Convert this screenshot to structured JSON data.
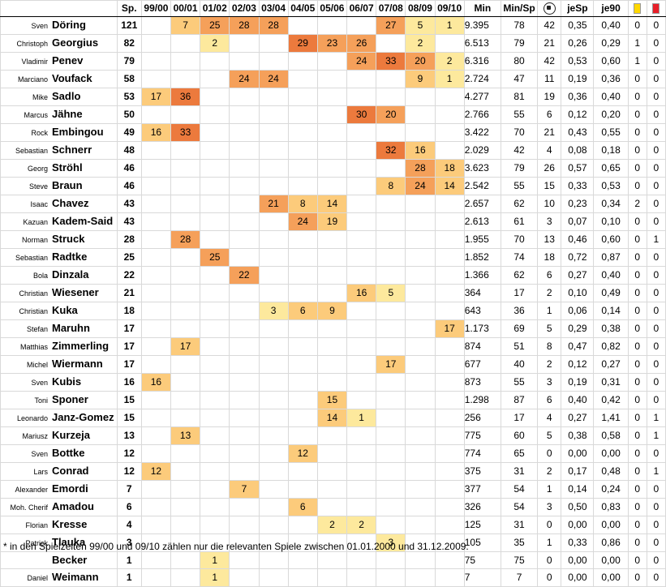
{
  "headers": {
    "sp": "Sp.",
    "seasons": [
      "99/00",
      "00/01",
      "01/02",
      "02/03",
      "03/04",
      "04/05",
      "05/06",
      "06/07",
      "07/08",
      "08/09",
      "09/10"
    ],
    "min": "Min",
    "min_per_sp": "Min/Sp",
    "goals_icon": "football-icon",
    "je_sp": "jeSp",
    "je90": "je90",
    "yellow_icon": "yellow-card-icon",
    "red_icon": "red-card-icon"
  },
  "players": [
    {
      "first": "Sven",
      "last": "Döring",
      "sp": "121",
      "seasons": [
        "",
        "7",
        "25",
        "28",
        "28",
        "",
        "",
        "",
        "27",
        "5",
        "1"
      ],
      "min": "9.395",
      "min_per_sp": "78",
      "goals": "42",
      "je_sp": "0,35",
      "je90": "0,40",
      "yellow": "0",
      "red": "0"
    },
    {
      "first": "Christoph",
      "last": "Georgius",
      "sp": "82",
      "seasons": [
        "",
        "",
        "2",
        "",
        "",
        "29",
        "23",
        "26",
        "",
        "2",
        ""
      ],
      "min": "6.513",
      "min_per_sp": "79",
      "goals": "21",
      "je_sp": "0,26",
      "je90": "0,29",
      "yellow": "1",
      "red": "0"
    },
    {
      "first": "Vladimir",
      "last": "Penev",
      "sp": "79",
      "seasons": [
        "",
        "",
        "",
        "",
        "",
        "",
        "",
        "24",
        "33",
        "20",
        "2"
      ],
      "min": "6.316",
      "min_per_sp": "80",
      "goals": "42",
      "je_sp": "0,53",
      "je90": "0,60",
      "yellow": "1",
      "red": "0"
    },
    {
      "first": "Marciano",
      "last": "Voufack",
      "sp": "58",
      "seasons": [
        "",
        "",
        "",
        "24",
        "24",
        "",
        "",
        "",
        "",
        "9",
        "1"
      ],
      "min": "2.724",
      "min_per_sp": "47",
      "goals": "11",
      "je_sp": "0,19",
      "je90": "0,36",
      "yellow": "0",
      "red": "0"
    },
    {
      "first": "Mike",
      "last": "Sadlo",
      "sp": "53",
      "seasons": [
        "17",
        "36",
        "",
        "",
        "",
        "",
        "",
        "",
        "",
        "",
        ""
      ],
      "min": "4.277",
      "min_per_sp": "81",
      "goals": "19",
      "je_sp": "0,36",
      "je90": "0,40",
      "yellow": "0",
      "red": "0"
    },
    {
      "first": "Marcus",
      "last": "Jähne",
      "sp": "50",
      "seasons": [
        "",
        "",
        "",
        "",
        "",
        "",
        "",
        "30",
        "20",
        "",
        ""
      ],
      "min": "2.766",
      "min_per_sp": "55",
      "goals": "6",
      "je_sp": "0,12",
      "je90": "0,20",
      "yellow": "0",
      "red": "0"
    },
    {
      "first": "Rock",
      "last": "Embingou",
      "sp": "49",
      "seasons": [
        "16",
        "33",
        "",
        "",
        "",
        "",
        "",
        "",
        "",
        "",
        ""
      ],
      "min": "3.422",
      "min_per_sp": "70",
      "goals": "21",
      "je_sp": "0,43",
      "je90": "0,55",
      "yellow": "0",
      "red": "0"
    },
    {
      "first": "Sebastian",
      "last": "Schnerr",
      "sp": "48",
      "seasons": [
        "",
        "",
        "",
        "",
        "",
        "",
        "",
        "",
        "32",
        "16",
        ""
      ],
      "min": "2.029",
      "min_per_sp": "42",
      "goals": "4",
      "je_sp": "0,08",
      "je90": "0,18",
      "yellow": "0",
      "red": "0"
    },
    {
      "first": "Georg",
      "last": "Ströhl",
      "sp": "46",
      "seasons": [
        "",
        "",
        "",
        "",
        "",
        "",
        "",
        "",
        "",
        "28",
        "18"
      ],
      "min": "3.623",
      "min_per_sp": "79",
      "goals": "26",
      "je_sp": "0,57",
      "je90": "0,65",
      "yellow": "0",
      "red": "0"
    },
    {
      "first": "Steve",
      "last": "Braun",
      "sp": "46",
      "seasons": [
        "",
        "",
        "",
        "",
        "",
        "",
        "",
        "",
        "8",
        "24",
        "14"
      ],
      "min": "2.542",
      "min_per_sp": "55",
      "goals": "15",
      "je_sp": "0,33",
      "je90": "0,53",
      "yellow": "0",
      "red": "0"
    },
    {
      "first": "Isaac",
      "last": "Chavez",
      "sp": "43",
      "seasons": [
        "",
        "",
        "",
        "",
        "21",
        "8",
        "14",
        "",
        "",
        "",
        ""
      ],
      "min": "2.657",
      "min_per_sp": "62",
      "goals": "10",
      "je_sp": "0,23",
      "je90": "0,34",
      "yellow": "2",
      "red": "0"
    },
    {
      "first": "Kazuan",
      "last": "Kadem-Said",
      "sp": "43",
      "seasons": [
        "",
        "",
        "",
        "",
        "",
        "24",
        "19",
        "",
        "",
        "",
        ""
      ],
      "min": "2.613",
      "min_per_sp": "61",
      "goals": "3",
      "je_sp": "0,07",
      "je90": "0,10",
      "yellow": "0",
      "red": "0"
    },
    {
      "first": "Norman",
      "last": "Struck",
      "sp": "28",
      "seasons": [
        "",
        "28",
        "",
        "",
        "",
        "",
        "",
        "",
        "",
        "",
        ""
      ],
      "min": "1.955",
      "min_per_sp": "70",
      "goals": "13",
      "je_sp": "0,46",
      "je90": "0,60",
      "yellow": "0",
      "red": "1"
    },
    {
      "first": "Sebastian",
      "last": "Radtke",
      "sp": "25",
      "seasons": [
        "",
        "",
        "25",
        "",
        "",
        "",
        "",
        "",
        "",
        "",
        ""
      ],
      "min": "1.852",
      "min_per_sp": "74",
      "goals": "18",
      "je_sp": "0,72",
      "je90": "0,87",
      "yellow": "0",
      "red": "0"
    },
    {
      "first": "Bola",
      "last": "Dinzala",
      "sp": "22",
      "seasons": [
        "",
        "",
        "",
        "22",
        "",
        "",
        "",
        "",
        "",
        "",
        ""
      ],
      "min": "1.366",
      "min_per_sp": "62",
      "goals": "6",
      "je_sp": "0,27",
      "je90": "0,40",
      "yellow": "0",
      "red": "0"
    },
    {
      "first": "Christian",
      "last": "Wiesener",
      "sp": "21",
      "seasons": [
        "",
        "",
        "",
        "",
        "",
        "",
        "",
        "16",
        "5",
        "",
        ""
      ],
      "min": "364",
      "min_per_sp": "17",
      "goals": "2",
      "je_sp": "0,10",
      "je90": "0,49",
      "yellow": "0",
      "red": "0"
    },
    {
      "first": "Christian",
      "last": "Kuka",
      "sp": "18",
      "seasons": [
        "",
        "",
        "",
        "",
        "3",
        "6",
        "9",
        "",
        "",
        "",
        ""
      ],
      "min": "643",
      "min_per_sp": "36",
      "goals": "1",
      "je_sp": "0,06",
      "je90": "0,14",
      "yellow": "0",
      "red": "0"
    },
    {
      "first": "Stefan",
      "last": "Maruhn",
      "sp": "17",
      "seasons": [
        "",
        "",
        "",
        "",
        "",
        "",
        "",
        "",
        "",
        "",
        "17"
      ],
      "min": "1.173",
      "min_per_sp": "69",
      "goals": "5",
      "je_sp": "0,29",
      "je90": "0,38",
      "yellow": "0",
      "red": "0"
    },
    {
      "first": "Matthias",
      "last": "Zimmerling",
      "sp": "17",
      "seasons": [
        "",
        "17",
        "",
        "",
        "",
        "",
        "",
        "",
        "",
        "",
        ""
      ],
      "min": "874",
      "min_per_sp": "51",
      "goals": "8",
      "je_sp": "0,47",
      "je90": "0,82",
      "yellow": "0",
      "red": "0"
    },
    {
      "first": "Michel",
      "last": "Wiermann",
      "sp": "17",
      "seasons": [
        "",
        "",
        "",
        "",
        "",
        "",
        "",
        "",
        "17",
        "",
        ""
      ],
      "min": "677",
      "min_per_sp": "40",
      "goals": "2",
      "je_sp": "0,12",
      "je90": "0,27",
      "yellow": "0",
      "red": "0"
    },
    {
      "first": "Sven",
      "last": "Kubis",
      "sp": "16",
      "seasons": [
        "16",
        "",
        "",
        "",
        "",
        "",
        "",
        "",
        "",
        "",
        ""
      ],
      "min": "873",
      "min_per_sp": "55",
      "goals": "3",
      "je_sp": "0,19",
      "je90": "0,31",
      "yellow": "0",
      "red": "0"
    },
    {
      "first": "Toni",
      "last": "Sponer",
      "sp": "15",
      "seasons": [
        "",
        "",
        "",
        "",
        "",
        "",
        "15",
        "",
        "",
        "",
        ""
      ],
      "min": "1.298",
      "min_per_sp": "87",
      "goals": "6",
      "je_sp": "0,40",
      "je90": "0,42",
      "yellow": "0",
      "red": "0"
    },
    {
      "first": "Leonardo",
      "last": "Janz-Gomez",
      "sp": "15",
      "seasons": [
        "",
        "",
        "",
        "",
        "",
        "",
        "14",
        "1",
        "",
        "",
        ""
      ],
      "min": "256",
      "min_per_sp": "17",
      "goals": "4",
      "je_sp": "0,27",
      "je90": "1,41",
      "yellow": "0",
      "red": "1"
    },
    {
      "first": "Mariusz",
      "last": "Kurzeja",
      "sp": "13",
      "seasons": [
        "",
        "13",
        "",
        "",
        "",
        "",
        "",
        "",
        "",
        "",
        ""
      ],
      "min": "775",
      "min_per_sp": "60",
      "goals": "5",
      "je_sp": "0,38",
      "je90": "0,58",
      "yellow": "0",
      "red": "1"
    },
    {
      "first": "Sven",
      "last": "Bottke",
      "sp": "12",
      "seasons": [
        "",
        "",
        "",
        "",
        "",
        "12",
        "",
        "",
        "",
        "",
        ""
      ],
      "min": "774",
      "min_per_sp": "65",
      "goals": "0",
      "je_sp": "0,00",
      "je90": "0,00",
      "yellow": "0",
      "red": "0"
    },
    {
      "first": "Lars",
      "last": "Conrad",
      "sp": "12",
      "seasons": [
        "12",
        "",
        "",
        "",
        "",
        "",
        "",
        "",
        "",
        "",
        ""
      ],
      "min": "375",
      "min_per_sp": "31",
      "goals": "2",
      "je_sp": "0,17",
      "je90": "0,48",
      "yellow": "0",
      "red": "1"
    },
    {
      "first": "Alexander",
      "last": "Emordi",
      "sp": "7",
      "seasons": [
        "",
        "",
        "",
        "7",
        "",
        "",
        "",
        "",
        "",
        "",
        ""
      ],
      "min": "377",
      "min_per_sp": "54",
      "goals": "1",
      "je_sp": "0,14",
      "je90": "0,24",
      "yellow": "0",
      "red": "0"
    },
    {
      "first": "Moh. Cherif",
      "last": "Amadou",
      "sp": "6",
      "seasons": [
        "",
        "",
        "",
        "",
        "",
        "6",
        "",
        "",
        "",
        "",
        ""
      ],
      "min": "326",
      "min_per_sp": "54",
      "goals": "3",
      "je_sp": "0,50",
      "je90": "0,83",
      "yellow": "0",
      "red": "0"
    },
    {
      "first": "Florian",
      "last": "Kresse",
      "sp": "4",
      "seasons": [
        "",
        "",
        "",
        "",
        "",
        "",
        "2",
        "2",
        "",
        "",
        ""
      ],
      "min": "125",
      "min_per_sp": "31",
      "goals": "0",
      "je_sp": "0,00",
      "je90": "0,00",
      "yellow": "0",
      "red": "0"
    },
    {
      "first": "Patrick",
      "last": "Tlauka",
      "sp": "3",
      "seasons": [
        "",
        "",
        "",
        "",
        "",
        "",
        "",
        "",
        "3",
        "",
        ""
      ],
      "min": "105",
      "min_per_sp": "35",
      "goals": "1",
      "je_sp": "0,33",
      "je90": "0,86",
      "yellow": "0",
      "red": "0"
    },
    {
      "first": "",
      "last": "Becker",
      "sp": "1",
      "seasons": [
        "",
        "",
        "1",
        "",
        "",
        "",
        "",
        "",
        "",
        "",
        ""
      ],
      "min": "75",
      "min_per_sp": "75",
      "goals": "0",
      "je_sp": "0,00",
      "je90": "0,00",
      "yellow": "0",
      "red": "0"
    },
    {
      "first": "Daniel",
      "last": "Weimann",
      "sp": "1",
      "seasons": [
        "",
        "",
        "1",
        "",
        "",
        "",
        "",
        "",
        "",
        "",
        ""
      ],
      "min": "7",
      "min_per_sp": "7",
      "goals": "0",
      "je_sp": "0,00",
      "je90": "0,00",
      "yellow": "0",
      "red": "0"
    }
  ],
  "heat_colors": [
    "#fde99d",
    "#fccb7b",
    "#f5a05a",
    "#ec7a3d"
  ],
  "footnote": "* in den Spielzeiten 99/00 und 09/10 zählen nur die relevanten Spiele zwischen 01.01.2000 und 31.12.2009."
}
